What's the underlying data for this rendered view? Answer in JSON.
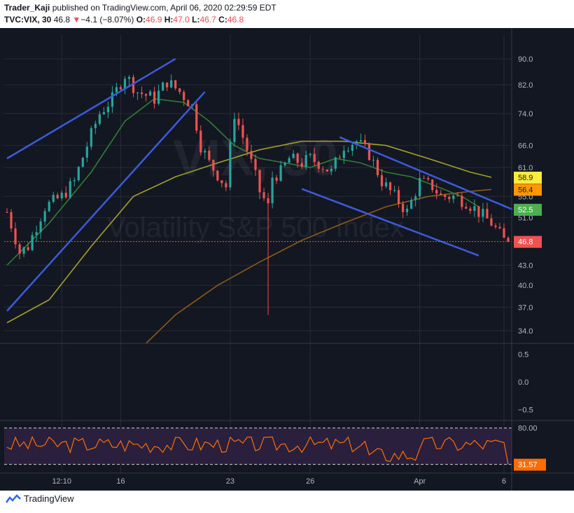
{
  "header": {
    "author": "Trader_Kaji",
    "published_text": "published on TradingView.com, April 06, 2020 02:29:59 EDT",
    "symbol": "TVC:VIX, 30",
    "last": "46.8",
    "change_arrow": "▼",
    "change": "−4.1 (−8.07%)",
    "o_label": "O:",
    "o_value": "46.9",
    "h_label": "H:",
    "h_value": "47.0",
    "l_label": "L:",
    "l_value": "46.7",
    "c_label": "C:",
    "c_value": "46.8"
  },
  "watermark": {
    "symbol": "VIX, 30",
    "name": "Volatility S&P 500 Index"
  },
  "footer": {
    "brand": "TradingView"
  },
  "colors": {
    "background": "#131722",
    "grid": "#262b38",
    "text": "#b2b5be",
    "candle_up": "#26a69a",
    "candle_down": "#ef5350",
    "trendline": "#3b5bdb",
    "ma_green": "#2e7d32",
    "ma_olive": "#a2a02a",
    "ma_brown": "#8a5a19",
    "last_price": "#ef5350",
    "rsi_line": "#ff6d00",
    "rsi_band": "#2a1f3d"
  },
  "chart_data": {
    "type": "candlestick",
    "timeframe": "30",
    "x_ticks": [
      "12:10",
      "16",
      "23",
      "26",
      "Apr",
      "6"
    ],
    "x_tick_index": [
      13,
      27,
      53,
      72,
      98,
      118
    ],
    "bar_count": 120,
    "price_axis": {
      "scale": "log",
      "range": [
        32.5,
        98
      ],
      "ticks": [
        90.0,
        82.0,
        74.0,
        66.0,
        61.0,
        55.0,
        51.0,
        43.0,
        40.0,
        37.0,
        34.0
      ]
    },
    "anchors": [
      [
        0,
        52
      ],
      [
        3,
        45
      ],
      [
        5,
        46
      ],
      [
        9,
        53
      ],
      [
        13,
        55
      ],
      [
        16,
        58
      ],
      [
        19,
        66
      ],
      [
        22,
        74
      ],
      [
        25,
        78
      ],
      [
        28,
        85
      ],
      [
        31,
        80
      ],
      [
        35,
        78
      ],
      [
        38,
        83
      ],
      [
        41,
        80
      ],
      [
        44,
        76
      ],
      [
        46,
        66
      ],
      [
        48,
        62
      ],
      [
        52,
        57
      ],
      [
        54,
        74
      ],
      [
        56,
        68
      ],
      [
        58,
        62
      ],
      [
        60,
        56
      ],
      [
        62,
        53
      ],
      [
        63,
        59
      ],
      [
        65,
        60
      ],
      [
        67,
        63
      ],
      [
        70,
        62
      ],
      [
        72,
        63
      ],
      [
        74,
        62
      ],
      [
        77,
        60
      ],
      [
        80,
        66
      ],
      [
        83,
        67
      ],
      [
        86,
        64
      ],
      [
        89,
        58
      ],
      [
        92,
        55
      ],
      [
        95,
        52
      ],
      [
        98,
        58
      ],
      [
        101,
        57
      ],
      [
        103,
        55
      ],
      [
        106,
        55
      ],
      [
        109,
        54
      ],
      [
        112,
        52
      ],
      [
        115,
        50
      ],
      [
        118,
        47
      ],
      [
        119,
        46.8
      ]
    ],
    "spike": {
      "bar": 62,
      "low": 36
    },
    "price_labels": [
      {
        "value": 58.9,
        "label": "58.9",
        "color": "#ffeb3b",
        "text_color": "#131722"
      },
      {
        "value": 56.4,
        "label": "56.4",
        "color": "#ff9800",
        "text_color": "#131722"
      },
      {
        "value": 52.5,
        "label": "52.5",
        "color": "#4caf50",
        "text_color": "#ffffff"
      },
      {
        "value": 46.8,
        "label": "46.8",
        "color": "#ef5350",
        "text_color": "#ffffff"
      }
    ],
    "moving_averages": [
      {
        "color": "#2e7d32",
        "points": [
          [
            0,
            43
          ],
          [
            10,
            50
          ],
          [
            20,
            60
          ],
          [
            28,
            72
          ],
          [
            35,
            78
          ],
          [
            42,
            77
          ],
          [
            48,
            72
          ],
          [
            54,
            66
          ],
          [
            60,
            63
          ],
          [
            66,
            62
          ],
          [
            72,
            61
          ],
          [
            78,
            63
          ],
          [
            84,
            62
          ],
          [
            90,
            60
          ],
          [
            96,
            59
          ],
          [
            102,
            57
          ],
          [
            108,
            55
          ],
          [
            112,
            53
          ]
        ]
      },
      {
        "color": "#a2a02a",
        "points": [
          [
            0,
            35
          ],
          [
            10,
            38
          ],
          [
            20,
            46
          ],
          [
            30,
            55
          ],
          [
            40,
            59
          ],
          [
            50,
            62
          ],
          [
            60,
            65
          ],
          [
            70,
            67
          ],
          [
            80,
            67
          ],
          [
            90,
            66
          ],
          [
            100,
            63
          ],
          [
            110,
            60
          ],
          [
            115,
            58.9
          ]
        ]
      },
      {
        "color": "#8a5a19",
        "points": [
          [
            33,
            32.5
          ],
          [
            40,
            36
          ],
          [
            50,
            40
          ],
          [
            60,
            43.5
          ],
          [
            70,
            47
          ],
          [
            80,
            50
          ],
          [
            90,
            53
          ],
          [
            100,
            55
          ],
          [
            110,
            56
          ],
          [
            115,
            56.4
          ]
        ]
      }
    ],
    "trendlines": [
      {
        "from": [
          0,
          63
        ],
        "to": [
          40,
          90
        ]
      },
      {
        "from": [
          0,
          36.5
        ],
        "to": [
          47,
          80
        ]
      },
      {
        "from": [
          79,
          68
        ],
        "to": [
          120,
          52.5
        ]
      },
      {
        "from": [
          70,
          56.5
        ],
        "to": [
          112,
          44.5
        ]
      }
    ],
    "oscillator": {
      "ticks": [
        0.5,
        0.0,
        -0.5
      ],
      "range": [
        -0.7,
        0.7
      ],
      "value": 0.0
    },
    "rsi": {
      "upper": 80.0,
      "lower": 31.57,
      "upper_label": "80.00",
      "lower_label": "31.57",
      "range": [
        20,
        90
      ],
      "current": 31.57
    }
  }
}
